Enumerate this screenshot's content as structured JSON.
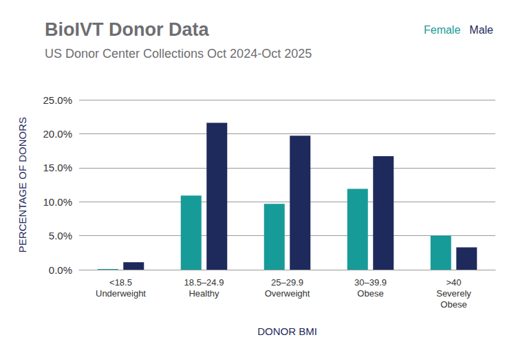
{
  "chart_data": {
    "type": "bar",
    "title": "BioIVT Donor Data",
    "subtitle": "US Donor Center Collections Oct 2024-Oct 2025",
    "x_label": "DONOR BMI",
    "y_label": "PERCENTAGE OF DONORS",
    "categories": [
      "<18.5\nUnderweight",
      "18.5–24.9\nHealthy",
      "25–29.9\nOverweight",
      "30–39.9\nObese",
      ">40\nSeverely\nObese"
    ],
    "series": [
      {
        "name": "Female",
        "color": "#179b98",
        "values": [
          0.1,
          10.9,
          9.7,
          11.9,
          5.0
        ]
      },
      {
        "name": "Male",
        "color": "#1f2a5c",
        "values": [
          1.1,
          21.6,
          19.7,
          16.7,
          3.3
        ]
      }
    ],
    "ylim": [
      0,
      25
    ],
    "yticks": [
      {
        "value": 0,
        "label": "0.0%"
      },
      {
        "value": 5,
        "label": "5.0%"
      },
      {
        "value": 10,
        "label": "10.0%"
      },
      {
        "value": 15,
        "label": "15.0%"
      },
      {
        "value": 20,
        "label": "20.0%"
      },
      {
        "value": 25,
        "label": "25.0%"
      }
    ],
    "grid": true,
    "legend": "top-right"
  }
}
